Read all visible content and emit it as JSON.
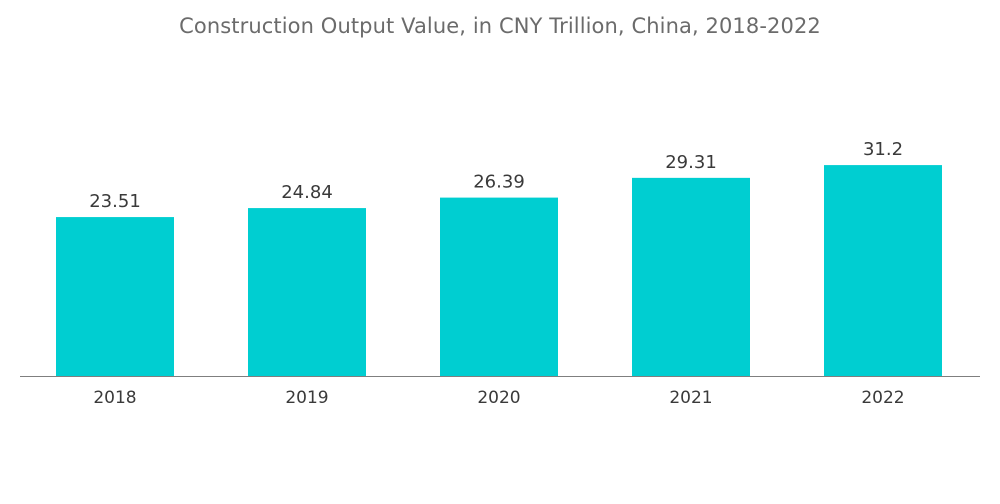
{
  "chart_data": {
    "type": "bar",
    "title": "Construction Output Value, in CNY Trillion, China, 2018-2022",
    "categories": [
      "2018",
      "2019",
      "2020",
      "2021",
      "2022"
    ],
    "values": [
      23.51,
      24.84,
      26.39,
      29.31,
      31.2
    ],
    "value_labels": [
      "23.51",
      "24.84",
      "26.39",
      "29.31",
      "31.2"
    ],
    "xlabel": "",
    "ylabel": "",
    "ylim": [
      0,
      35
    ],
    "grid": false,
    "legend": "none",
    "bar_color": "#00ced1",
    "baseline_color": "#7f7f7f"
  }
}
